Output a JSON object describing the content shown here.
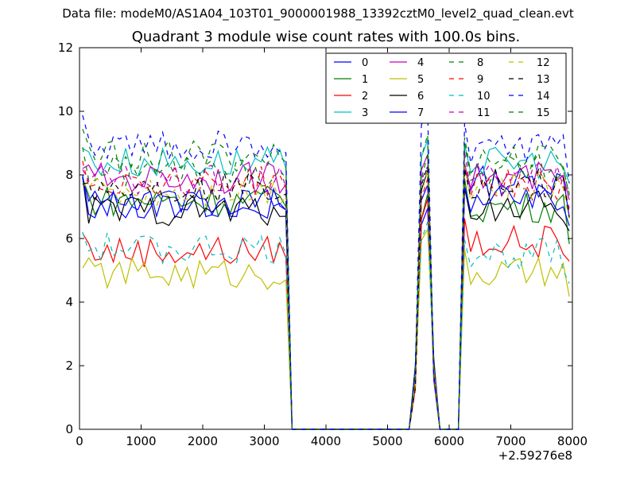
{
  "header": {
    "data_file": "Data file: modeM0/AS1A04_103T01_9000001988_13392cztM0_level2_quad_clean.evt"
  },
  "chart_data": {
    "type": "line",
    "title": "Quadrant 3 module wise count rates with 100.0s bins.",
    "xlabel": "",
    "ylabel": "",
    "x_offset_label": "+2.59276e8",
    "xlim": [
      0,
      8000
    ],
    "ylim": [
      0,
      12
    ],
    "xticks": [
      0,
      1000,
      2000,
      3000,
      4000,
      5000,
      6000,
      7000,
      8000
    ],
    "yticks": [
      0,
      2,
      4,
      6,
      8,
      10,
      12
    ],
    "legend_position": "top-right",
    "series": [
      {
        "name": "0",
        "color": "#0000ff",
        "dash": "solid",
        "base": [
          7.1,
          6.8,
          7.8
        ]
      },
      {
        "name": "1",
        "color": "#008000",
        "dash": "solid",
        "base": [
          7.2,
          7.2,
          7.0
        ]
      },
      {
        "name": "2",
        "color": "#ff0000",
        "dash": "solid",
        "base": [
          5.6,
          7.0,
          5.9
        ]
      },
      {
        "name": "3",
        "color": "#00bfbf",
        "dash": "solid",
        "base": [
          8.4,
          8.8,
          8.4
        ]
      },
      {
        "name": "4",
        "color": "#bf00bf",
        "dash": "solid",
        "base": [
          7.9,
          8.6,
          7.9
        ]
      },
      {
        "name": "5",
        "color": "#bfbf00",
        "dash": "solid",
        "base": [
          4.9,
          6.2,
          4.9
        ]
      },
      {
        "name": "6",
        "color": "#000000",
        "dash": "solid",
        "base": [
          6.9,
          8.0,
          7.0
        ]
      },
      {
        "name": "7",
        "color": "#0000ff",
        "dash": "solid",
        "base": [
          7.1,
          7.5,
          7.2
        ]
      },
      {
        "name": "8",
        "color": "#008000",
        "dash": "dashed",
        "base": [
          8.1,
          8.4,
          8.2
        ]
      },
      {
        "name": "9",
        "color": "#ff0000",
        "dash": "dashed",
        "base": [
          7.8,
          7.6,
          7.7
        ]
      },
      {
        "name": "10",
        "color": "#00bfbf",
        "dash": "dashed",
        "base": [
          5.7,
          6.5,
          5.5
        ]
      },
      {
        "name": "11",
        "color": "#bf00bf",
        "dash": "dashed",
        "base": [
          7.8,
          8.2,
          7.9
        ]
      },
      {
        "name": "12",
        "color": "#bfbf00",
        "dash": "dashed",
        "base": [
          7.5,
          8.0,
          7.6
        ]
      },
      {
        "name": "13",
        "color": "#000000",
        "dash": "dashed",
        "base": [
          7.6,
          8.1,
          7.7
        ]
      },
      {
        "name": "14",
        "color": "#0000ff",
        "dash": "dashed",
        "base": [
          8.9,
          9.8,
          8.8
        ]
      },
      {
        "name": "15",
        "color": "#008000",
        "dash": "dashed",
        "base": [
          8.6,
          9.0,
          8.5
        ]
      }
    ],
    "segments": [
      {
        "x_start": 50,
        "x_end": 3350
      },
      {
        "x_start": 5350,
        "x_end": 5950
      },
      {
        "x_start": 6250,
        "x_end": 7950
      }
    ],
    "notes": "Count rates near 0 between ~3450-5350 and ~5850-6150; a peak near x=5650."
  }
}
